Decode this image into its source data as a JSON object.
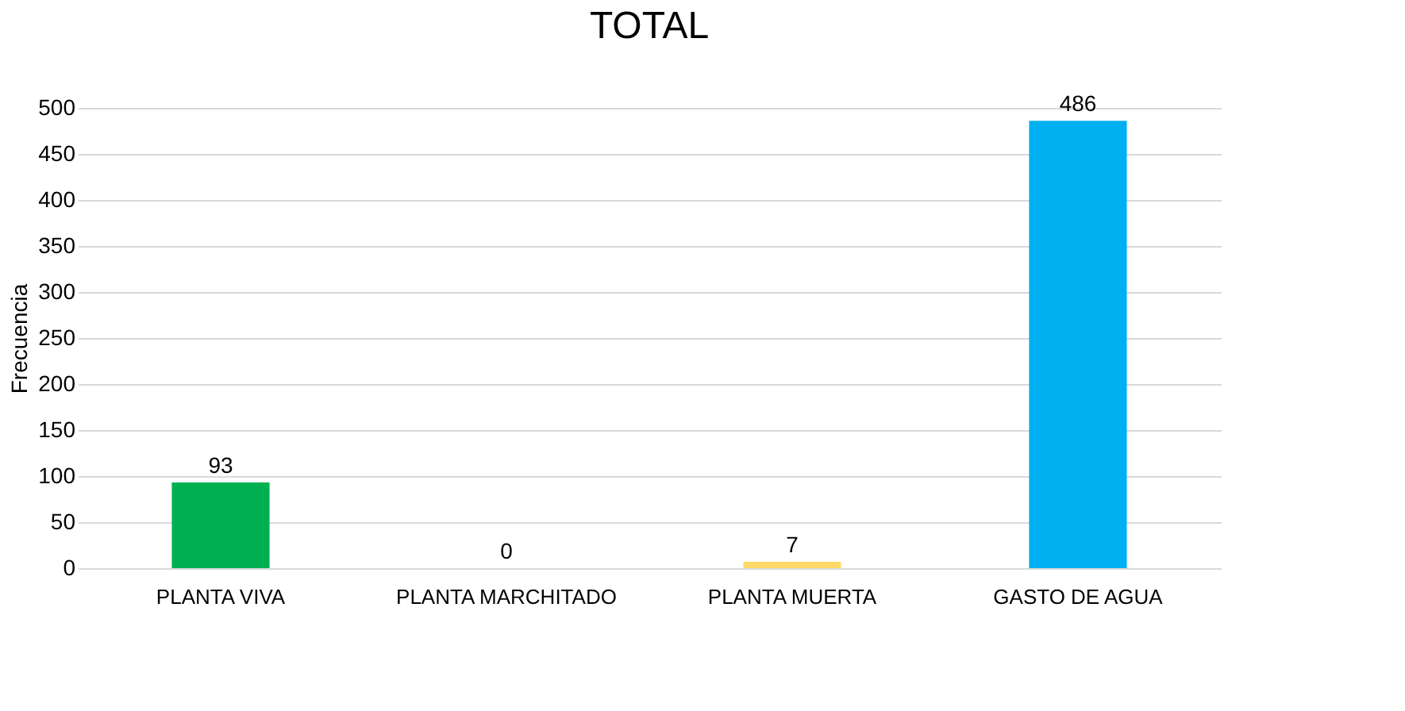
{
  "chart_data": {
    "type": "bar",
    "title": "TOTAL",
    "ylabel": "Frecuencia",
    "categories": [
      "PLANTA VIVA",
      "PLANTA MARCHITADO",
      "PLANTA MUERTA",
      "GASTO DE AGUA"
    ],
    "values": [
      93,
      0,
      7,
      486
    ],
    "colors": [
      "#00b050",
      "#2f5597",
      "#ffd966",
      "#00b0f0"
    ],
    "ylim": [
      0,
      500
    ],
    "yticks": [
      0,
      50,
      100,
      150,
      200,
      250,
      300,
      350,
      400,
      450,
      500
    ],
    "grid": "y",
    "data_labels": true
  }
}
